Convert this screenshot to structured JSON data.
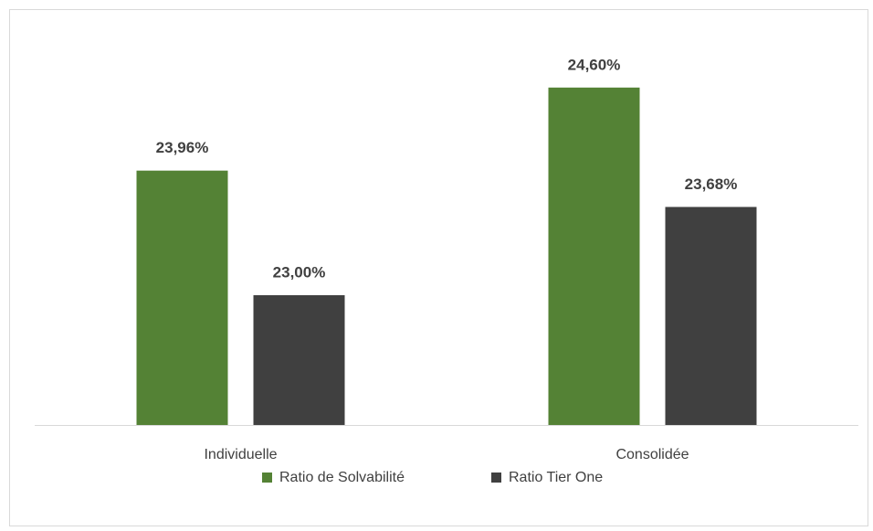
{
  "chart_data": {
    "type": "bar",
    "categories": [
      "Individuelle",
      "Consolidée"
    ],
    "series": [
      {
        "name": "Ratio de Solvabilité",
        "color": "#548235",
        "values": [
          23.96,
          24.6
        ],
        "value_labels": [
          "23,96%",
          "24,60%"
        ]
      },
      {
        "name": "Ratio Tier One",
        "color": "#404040",
        "values": [
          23.0,
          23.68
        ],
        "value_labels": [
          "23,00%",
          "23,68%"
        ]
      }
    ],
    "ylim": [
      22,
      25
    ],
    "legend": "bottom"
  }
}
